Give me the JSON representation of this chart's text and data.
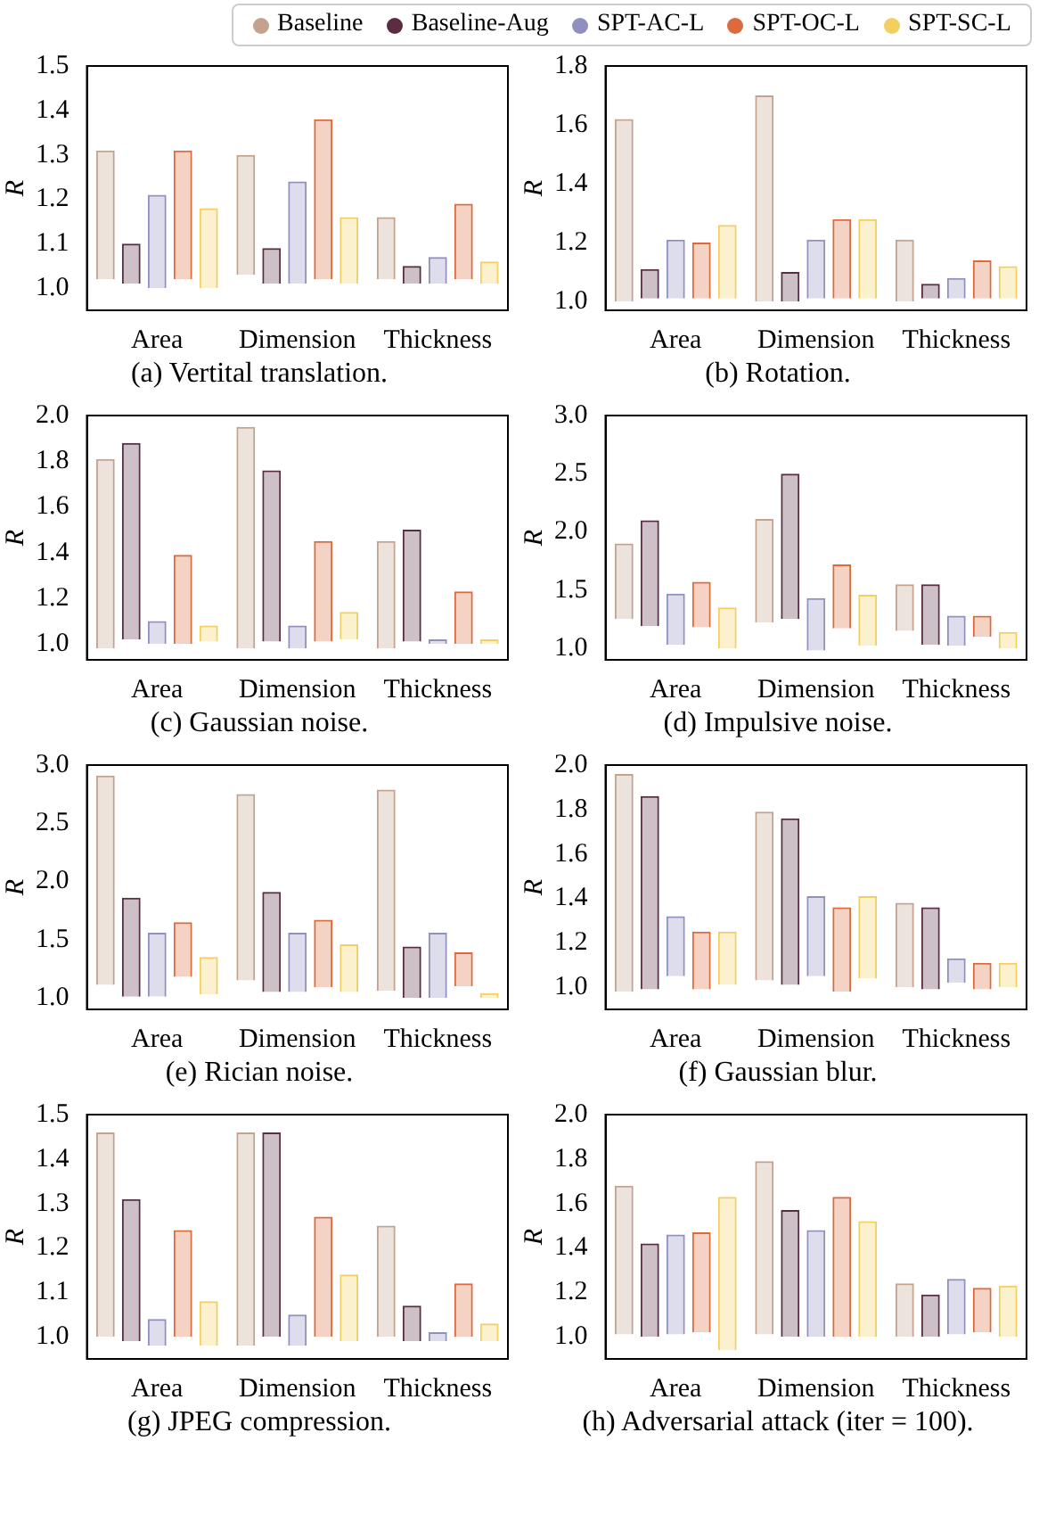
{
  "chart_data": [
    {
      "type": "bar",
      "title": "(a) Vertital translation.",
      "ylabel": "R",
      "legend": "top",
      "categories": [
        "Area",
        "Dimension",
        "Thickness"
      ],
      "ylim": [
        0.95,
        1.5
      ],
      "yticks": [
        {
          "value": 1,
          "label": "1.0"
        },
        {
          "value": 1.1,
          "label": "1.1"
        },
        {
          "value": 1.2,
          "label": "1.2"
        },
        {
          "value": 1.3,
          "label": "1.3"
        },
        {
          "value": 1.4,
          "label": "1.4"
        },
        {
          "value": 1.5,
          "label": "1.5"
        }
      ],
      "series": [
        {
          "name": "Baseline",
          "color": "#c4a28e",
          "base": [
            1.02,
            1.03,
            1.02
          ],
          "values": [
            0.29,
            0.27,
            0.14
          ]
        },
        {
          "name": "Baseline-Aug",
          "color": "#5a2d42",
          "base": [
            1.01,
            1.01,
            1.01
          ],
          "values": [
            0.09,
            0.08,
            0.04
          ]
        },
        {
          "name": "SPT-AC-L",
          "color": "#8f8fc0",
          "base": [
            1.0,
            1.01,
            1.01
          ],
          "values": [
            0.21,
            0.23,
            0.06
          ]
        },
        {
          "name": "SPT-OC-L",
          "color": "#dc6a3c",
          "base": [
            1.02,
            1.02,
            1.02
          ],
          "values": [
            0.29,
            0.36,
            0.17
          ]
        },
        {
          "name": "SPT-SC-L",
          "color": "#f2cf5e",
          "base": [
            1.0,
            1.01,
            1.01
          ],
          "values": [
            0.18,
            0.15,
            0.05
          ]
        }
      ]
    },
    {
      "type": "bar",
      "title": "(b) Rotation.",
      "ylabel": "R",
      "categories": [
        "Area",
        "Dimension",
        "Thickness"
      ],
      "ylim": [
        0.97,
        1.8
      ],
      "yticks": [
        {
          "value": 1,
          "label": "1.0"
        },
        {
          "value": 1.2,
          "label": "1.2"
        },
        {
          "value": 1.4,
          "label": "1.4"
        },
        {
          "value": 1.6,
          "label": "1.6"
        },
        {
          "value": 1.8,
          "label": "1.8"
        }
      ],
      "series": [
        {
          "color": "#c4a28e",
          "base": [
            1.0,
            1.0,
            1.0
          ],
          "values": [
            0.62,
            0.7,
            0.21
          ]
        },
        {
          "color": "#5a2d42",
          "base": [
            1.01,
            1.0,
            1.01
          ],
          "values": [
            0.1,
            0.1,
            0.05
          ]
        },
        {
          "color": "#8f8fc0",
          "base": [
            1.01,
            1.01,
            1.01
          ],
          "values": [
            0.2,
            0.2,
            0.07
          ]
        },
        {
          "color": "#dc6a3c",
          "base": [
            1.01,
            1.01,
            1.01
          ],
          "values": [
            0.19,
            0.27,
            0.13
          ]
        },
        {
          "color": "#f2cf5e",
          "base": [
            1.01,
            1.01,
            1.01
          ],
          "values": [
            0.25,
            0.27,
            0.11
          ]
        }
      ]
    },
    {
      "type": "bar",
      "title": "(c) Gaussian noise.",
      "ylabel": "R",
      "categories": [
        "Area",
        "Dimension",
        "Thickness"
      ],
      "ylim": [
        0.93,
        2.0
      ],
      "yticks": [
        {
          "value": 1,
          "label": "1.0"
        },
        {
          "value": 1.2,
          "label": "1.2"
        },
        {
          "value": 1.4,
          "label": "1.4"
        },
        {
          "value": 1.6,
          "label": "1.6"
        },
        {
          "value": 1.8,
          "label": "1.8"
        },
        {
          "value": 2,
          "label": "2.0"
        }
      ],
      "series": [
        {
          "color": "#c4a28e",
          "base": [
            0.98,
            0.98,
            0.98
          ],
          "values": [
            0.83,
            0.97,
            0.47
          ]
        },
        {
          "color": "#5a2d42",
          "base": [
            1.02,
            1.01,
            1.01
          ],
          "values": [
            0.86,
            0.75,
            0.49
          ]
        },
        {
          "color": "#8f8fc0",
          "base": [
            1.0,
            0.98,
            1.0
          ],
          "values": [
            0.1,
            0.1,
            0.02
          ]
        },
        {
          "color": "#dc6a3c",
          "base": [
            1.0,
            1.01,
            1.0
          ],
          "values": [
            0.39,
            0.44,
            0.23
          ]
        },
        {
          "color": "#f2cf5e",
          "base": [
            1.01,
            1.02,
            1.0
          ],
          "values": [
            0.07,
            0.12,
            0.02
          ]
        }
      ]
    },
    {
      "type": "bar",
      "title": "(d) Impulsive noise.",
      "ylabel": "R",
      "categories": [
        "Area",
        "Dimension",
        "Thickness"
      ],
      "ylim": [
        0.9,
        3.0
      ],
      "yticks": [
        {
          "value": 1,
          "label": "1.0"
        },
        {
          "value": 1.5,
          "label": "1.5"
        },
        {
          "value": 2,
          "label": "2.0"
        },
        {
          "value": 2.5,
          "label": "2.5"
        },
        {
          "value": 3,
          "label": "3.0"
        }
      ],
      "series": [
        {
          "color": "#c4a28e",
          "base": [
            1.25,
            1.22,
            1.15
          ],
          "values": [
            0.65,
            0.89,
            0.4
          ]
        },
        {
          "color": "#5a2d42",
          "base": [
            1.19,
            1.25,
            1.03
          ],
          "values": [
            0.91,
            1.25,
            0.52
          ]
        },
        {
          "color": "#8f8fc0",
          "base": [
            1.03,
            0.98,
            1.02
          ],
          "values": [
            0.44,
            0.45,
            0.26
          ]
        },
        {
          "color": "#dc6a3c",
          "base": [
            1.18,
            1.17,
            1.1
          ],
          "values": [
            0.39,
            0.55,
            0.18
          ]
        },
        {
          "color": "#f2cf5e",
          "base": [
            1.0,
            1.02,
            1.0
          ],
          "values": [
            0.35,
            0.44,
            0.14
          ]
        }
      ]
    },
    {
      "type": "bar",
      "title": "(e) Rician noise.",
      "ylabel": "R",
      "categories": [
        "Area",
        "Dimension",
        "Thickness"
      ],
      "ylim": [
        0.9,
        3.0
      ],
      "yticks": [
        {
          "value": 1,
          "label": "1.0"
        },
        {
          "value": 1.5,
          "label": "1.5"
        },
        {
          "value": 2,
          "label": "2.0"
        },
        {
          "value": 2.5,
          "label": "2.5"
        },
        {
          "value": 3,
          "label": "3.0"
        }
      ],
      "series": [
        {
          "color": "#c4a28e",
          "base": [
            1.11,
            1.15,
            1.06
          ],
          "values": [
            1.8,
            1.6,
            1.73
          ]
        },
        {
          "color": "#5a2d42",
          "base": [
            1.01,
            1.05,
            1.0
          ],
          "values": [
            0.85,
            0.86,
            0.44
          ]
        },
        {
          "color": "#8f8fc0",
          "base": [
            1.01,
            1.05,
            1.0
          ],
          "values": [
            0.55,
            0.51,
            0.56
          ]
        },
        {
          "color": "#dc6a3c",
          "base": [
            1.18,
            1.09,
            1.1
          ],
          "values": [
            0.47,
            0.58,
            0.29
          ]
        },
        {
          "color": "#f2cf5e",
          "base": [
            1.03,
            1.05,
            1.0
          ],
          "values": [
            0.32,
            0.41,
            0.04
          ]
        }
      ]
    },
    {
      "type": "bar",
      "title": "(f) Gaussian blur.",
      "ylabel": "R",
      "categories": [
        "Area",
        "Dimension",
        "Thickness"
      ],
      "ylim": [
        0.9,
        2.0
      ],
      "yticks": [
        {
          "value": 1,
          "label": "1.0"
        },
        {
          "value": 1.2,
          "label": "1.2"
        },
        {
          "value": 1.4,
          "label": "1.4"
        },
        {
          "value": 1.6,
          "label": "1.6"
        },
        {
          "value": 1.8,
          "label": "1.8"
        },
        {
          "value": 2,
          "label": "2.0"
        }
      ],
      "series": [
        {
          "color": "#c4a28e",
          "base": [
            0.98,
            1.03,
            1.0
          ],
          "values": [
            0.98,
            0.76,
            0.38
          ]
        },
        {
          "color": "#5a2d42",
          "base": [
            0.99,
            1.01,
            0.99
          ],
          "values": [
            0.87,
            0.75,
            0.37
          ]
        },
        {
          "color": "#8f8fc0",
          "base": [
            1.05,
            1.05,
            1.02
          ],
          "values": [
            0.27,
            0.36,
            0.11
          ]
        },
        {
          "color": "#dc6a3c",
          "base": [
            0.99,
            0.98,
            0.99
          ],
          "values": [
            0.26,
            0.38,
            0.12
          ]
        },
        {
          "color": "#f2cf5e",
          "base": [
            1.01,
            1.04,
            1.0
          ],
          "values": [
            0.24,
            0.37,
            0.11
          ]
        }
      ]
    },
    {
      "type": "bar",
      "title": "(g) JPEG compression.",
      "ylabel": "R",
      "categories": [
        "Area",
        "Dimension",
        "Thickness"
      ],
      "ylim": [
        0.95,
        1.5
      ],
      "yticks": [
        {
          "value": 1,
          "label": "1.0"
        },
        {
          "value": 1.1,
          "label": "1.1"
        },
        {
          "value": 1.2,
          "label": "1.2"
        },
        {
          "value": 1.3,
          "label": "1.3"
        },
        {
          "value": 1.4,
          "label": "1.4"
        },
        {
          "value": 1.5,
          "label": "1.5"
        }
      ],
      "series": [
        {
          "color": "#c4a28e",
          "base": [
            1.0,
            0.98,
            1.0
          ],
          "values": [
            0.46,
            0.48,
            0.25
          ]
        },
        {
          "color": "#5a2d42",
          "base": [
            0.99,
            1.0,
            0.99
          ],
          "values": [
            0.32,
            0.46,
            0.08
          ]
        },
        {
          "color": "#8f8fc0",
          "base": [
            0.98,
            0.98,
            0.99
          ],
          "values": [
            0.06,
            0.07,
            0.02
          ]
        },
        {
          "color": "#dc6a3c",
          "base": [
            1.0,
            1.0,
            1.0
          ],
          "values": [
            0.24,
            0.27,
            0.12
          ]
        },
        {
          "color": "#f2cf5e",
          "base": [
            0.98,
            0.99,
            0.99
          ],
          "values": [
            0.1,
            0.15,
            0.04
          ]
        }
      ]
    },
    {
      "type": "bar",
      "title": "(h) Adversarial attack (iter = 100).",
      "ylabel": "R",
      "categories": [
        "Area",
        "Dimension",
        "Thickness"
      ],
      "ylim": [
        0.9,
        2.0
      ],
      "yticks": [
        {
          "value": 1,
          "label": "1.0"
        },
        {
          "value": 1.2,
          "label": "1.2"
        },
        {
          "value": 1.4,
          "label": "1.4"
        },
        {
          "value": 1.6,
          "label": "1.6"
        },
        {
          "value": 1.8,
          "label": "1.8"
        },
        {
          "value": 2,
          "label": "2.0"
        }
      ],
      "series": [
        {
          "color": "#c4a28e",
          "base": [
            1.01,
            1.01,
            1.0
          ],
          "values": [
            0.67,
            0.78,
            0.24
          ]
        },
        {
          "color": "#5a2d42",
          "base": [
            1.0,
            1.0,
            1.0
          ],
          "values": [
            0.42,
            0.57,
            0.19
          ]
        },
        {
          "color": "#8f8fc0",
          "base": [
            1.01,
            1.0,
            1.01
          ],
          "values": [
            0.45,
            0.48,
            0.25
          ]
        },
        {
          "color": "#dc6a3c",
          "base": [
            1.02,
            1.0,
            1.02
          ],
          "values": [
            0.45,
            0.63,
            0.2
          ]
        },
        {
          "color": "#f2cf5e",
          "base": [
            0.94,
            1.0,
            1.0
          ],
          "values": [
            0.69,
            0.52,
            0.23
          ]
        }
      ]
    }
  ]
}
